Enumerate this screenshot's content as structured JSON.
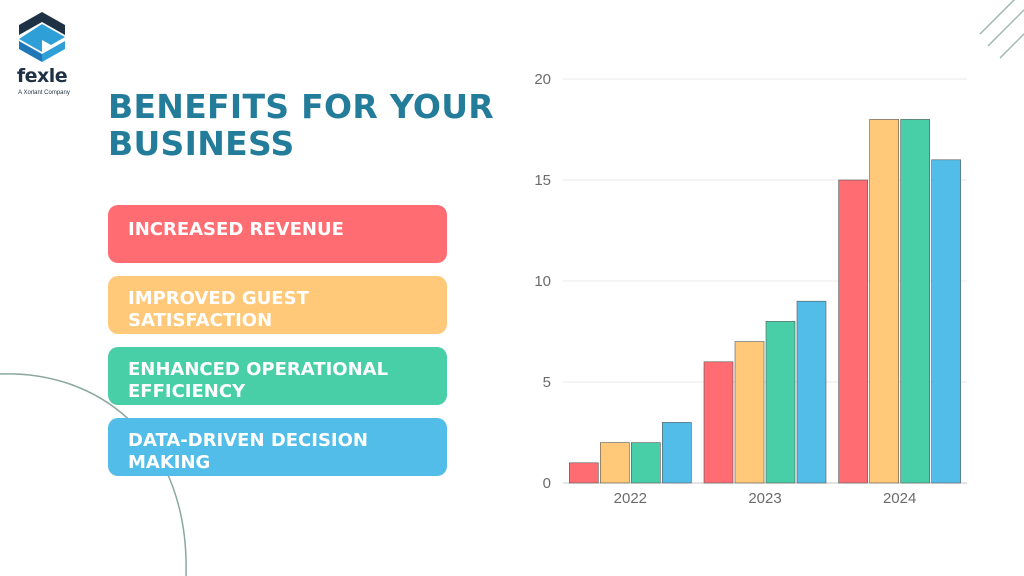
{
  "logo": {
    "wordmark": "fexle",
    "tagline": "A Xorlant Company",
    "icon": "fexle-logo-icon"
  },
  "headline": "BENEFITS FOR YOUR BUSINESS",
  "benefits": [
    {
      "label": "INCREASED REVENUE",
      "color": "#ff6d73"
    },
    {
      "label": "IMPROVED GUEST SATISFACTION",
      "color": "#ffc979"
    },
    {
      "label": "ENHANCED OPERATIONAL EFFICIENCY",
      "color": "#48cfa7"
    },
    {
      "label": "DATA-DRIVEN DECISION MAKING",
      "color": "#52bde8"
    }
  ],
  "chart_data": {
    "type": "bar",
    "categories": [
      "2022",
      "2023",
      "2024"
    ],
    "series": [
      {
        "values": [
          1,
          6,
          15
        ],
        "color": "#ff6d73"
      },
      {
        "values": [
          2,
          7,
          18
        ],
        "color": "#ffc979"
      },
      {
        "values": [
          2,
          8,
          18
        ],
        "color": "#48cfa7"
      },
      {
        "values": [
          3,
          9,
          16
        ],
        "color": "#52bde8"
      }
    ],
    "ylim": [
      0,
      20
    ],
    "yticks": [
      0,
      5,
      10,
      15,
      20
    ],
    "grid": true,
    "legend": "none"
  }
}
